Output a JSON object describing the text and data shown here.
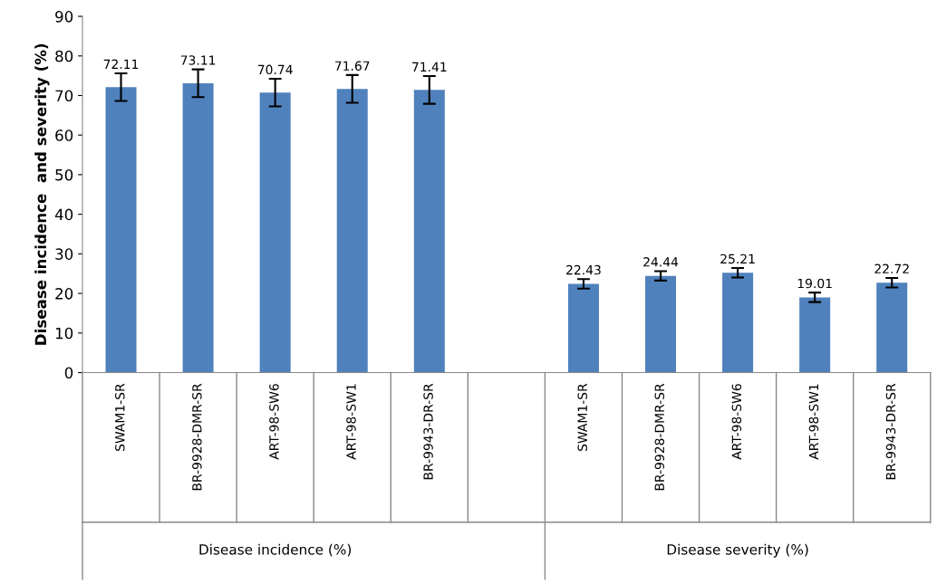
{
  "chart_data": {
    "type": "bar",
    "ylabel": "Disease incidence  and severity (%)",
    "categories": [
      "SWAM1-SR",
      "BR-9928-DMR-SR",
      "ART-98-SW6",
      "ART-98-SW1",
      "BR-9943-DR-SR",
      null,
      "SWAM1-SR",
      "BR-9928-DMR-SR",
      "ART-98-SW6",
      "ART-98-SW1",
      "BR-9943-DR-SR"
    ],
    "values": [
      72.11,
      73.11,
      70.74,
      71.67,
      71.41,
      null,
      22.43,
      24.44,
      25.21,
      19.01,
      22.72
    ],
    "errors": [
      3.5,
      3.5,
      3.5,
      3.5,
      3.5,
      null,
      1.2,
      1.2,
      1.2,
      1.2,
      1.2
    ],
    "color": "#4f81bd",
    "data_labels": true,
    "grid": false,
    "ylim": [
      0,
      90
    ],
    "yticks": [
      0,
      10,
      20,
      30,
      40,
      50,
      60,
      70,
      80,
      90
    ],
    "annotations": [
      "Disease incidence (%)",
      "Disease severity (%)"
    ]
  }
}
